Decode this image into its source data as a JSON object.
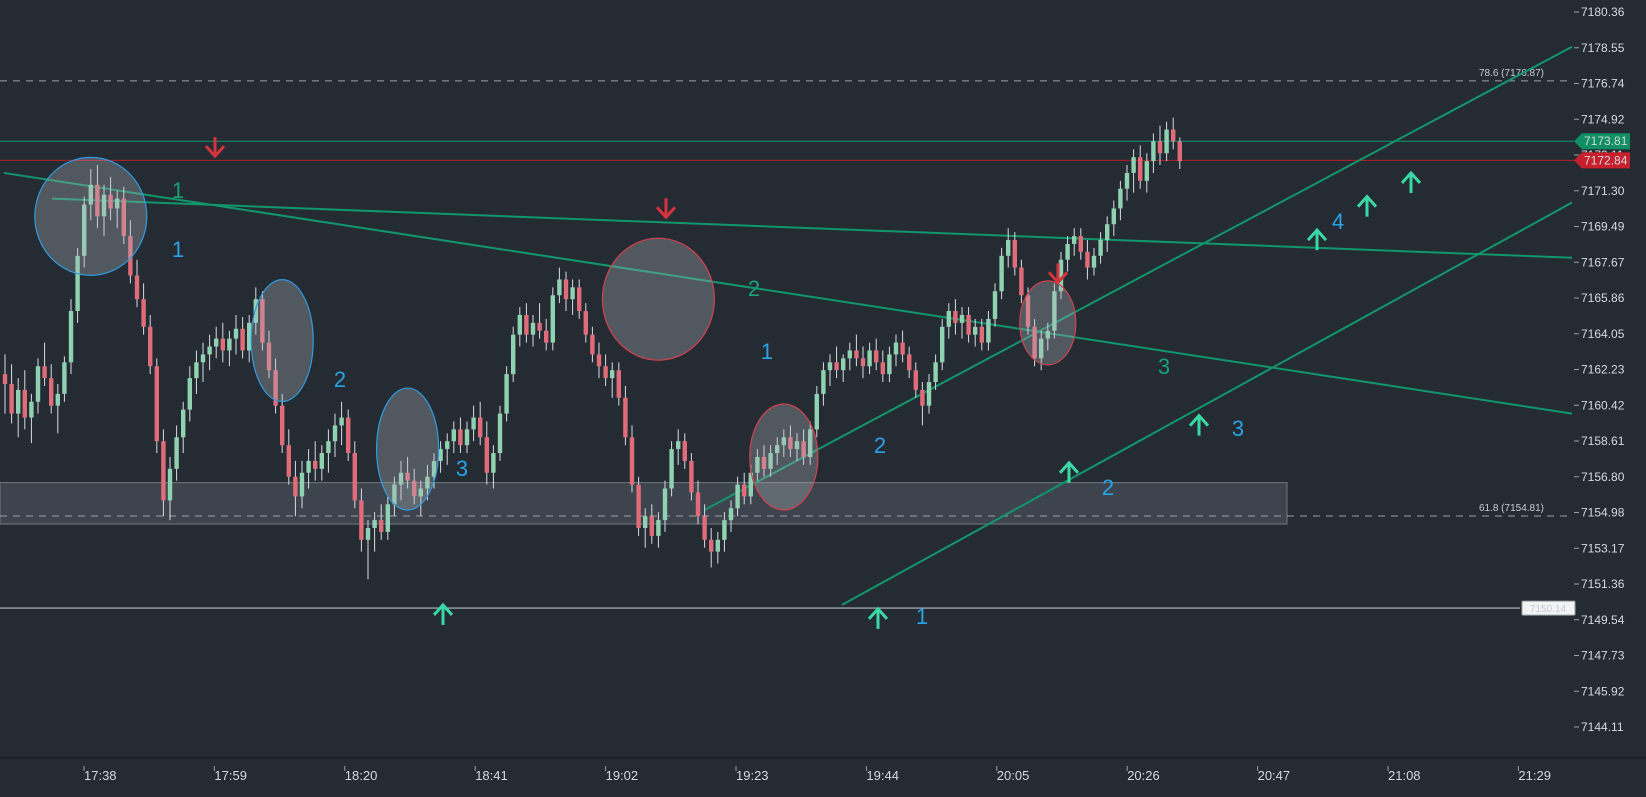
{
  "chart_data": {
    "type": "candlestick",
    "y_axis": {
      "range": [
        7144.11,
        7180.36
      ],
      "tick_labels": [
        "7180.36",
        "7178.55",
        "7176.74",
        "7174.92",
        "7173.11",
        "7171.30",
        "7169.49",
        "7167.67",
        "7165.86",
        "7164.05",
        "7162.23",
        "7160.42",
        "7158.61",
        "7156.80",
        "7154.98",
        "7153.17",
        "7151.36",
        "7149.54",
        "7147.73",
        "7145.92",
        "7144.11"
      ]
    },
    "x_axis": {
      "tick_labels": [
        "17:38",
        "17:59",
        "18:20",
        "18:41",
        "19:02",
        "19:23",
        "19:44",
        "20:05",
        "20:26",
        "20:47",
        "21:08",
        "21:29"
      ]
    },
    "colors": {
      "background": "#252b33",
      "bull": "#8fd1b0",
      "bear": "#e06c7a",
      "trendline": "#12966b",
      "sell_signal": "#d5343f",
      "buy_signal": "#3ad8a4",
      "wave_blue": "#29a3e6",
      "wave_green": "#17a276",
      "support_line": "#9aa0a6",
      "fib_line": "#9aa0a6"
    },
    "fib_levels": [
      {
        "label": "78.6 (7176.87)",
        "price": 7176.87
      },
      {
        "label": "61.8 (7154.81)",
        "price": 7154.81
      }
    ],
    "price_tags": [
      {
        "text": "7173.81",
        "price": 7173.81,
        "color": "#0f8f63",
        "line": "#12966b"
      },
      {
        "text": "7172.84",
        "price": 7172.84,
        "color": "#c71f2d",
        "line": "#b41f2a"
      }
    ],
    "support": {
      "text": "7150.14",
      "price": 7150.14
    },
    "demand_zone": {
      "top": 7156.5,
      "bottom": 7154.4
    },
    "wave_labels": [
      {
        "text": "1",
        "color": "blue"
      },
      {
        "text": "1",
        "color": "green"
      },
      {
        "text": "2",
        "color": "blue"
      },
      {
        "text": "3",
        "color": "blue"
      },
      {
        "text": "2",
        "color": "green"
      },
      {
        "text": "1",
        "color": "blue"
      },
      {
        "text": "2",
        "color": "blue"
      },
      {
        "text": "1",
        "color": "blue"
      },
      {
        "text": "2",
        "color": "blue"
      },
      {
        "text": "3",
        "color": "green"
      },
      {
        "text": "3",
        "color": "blue"
      },
      {
        "text": "4",
        "color": "blue"
      }
    ],
    "signals": [
      {
        "type": "sell",
        "price": 7172.9
      },
      {
        "type": "sell",
        "price": 7169.8
      },
      {
        "type": "sell",
        "price": 7166.5
      },
      {
        "type": "buy",
        "price": 7150.4
      },
      {
        "type": "buy",
        "price": 7150.2
      },
      {
        "type": "buy",
        "price": 7157.6
      },
      {
        "type": "buy",
        "price": 7160.0
      },
      {
        "type": "buy",
        "price": 7169.4
      },
      {
        "type": "buy",
        "price": 7171.1
      },
      {
        "type": "buy",
        "price": 7172.3
      }
    ],
    "candles": [
      [
        7162.0,
        7163.0,
        7160.0,
        7161.5
      ],
      [
        7161.5,
        7162.5,
        7159.5,
        7160.0
      ],
      [
        7160.0,
        7161.8,
        7158.8,
        7161.2
      ],
      [
        7161.2,
        7162.2,
        7159.2,
        7159.8
      ],
      [
        7159.8,
        7161.0,
        7158.5,
        7160.6
      ],
      [
        7160.6,
        7162.8,
        7160.0,
        7162.4
      ],
      [
        7162.4,
        7163.6,
        7161.4,
        7161.8
      ],
      [
        7161.8,
        7162.5,
        7160.0,
        7160.4
      ],
      [
        7160.4,
        7161.5,
        7159.0,
        7161.0
      ],
      [
        7161.0,
        7162.9,
        7160.6,
        7162.6
      ],
      [
        7162.6,
        7165.8,
        7162.0,
        7165.2
      ],
      [
        7165.2,
        7168.4,
        7164.6,
        7168.0
      ],
      [
        7168.0,
        7171.0,
        7167.4,
        7170.6
      ],
      [
        7170.6,
        7172.4,
        7169.8,
        7171.6
      ],
      [
        7171.6,
        7172.6,
        7169.4,
        7170.0
      ],
      [
        7170.0,
        7171.6,
        7169.0,
        7171.1
      ],
      [
        7171.1,
        7172.0,
        7169.8,
        7170.4
      ],
      [
        7170.4,
        7171.3,
        7169.4,
        7170.9
      ],
      [
        7170.9,
        7171.5,
        7168.6,
        7169.0
      ],
      [
        7169.0,
        7169.8,
        7166.6,
        7167.0
      ],
      [
        7167.0,
        7167.8,
        7165.4,
        7165.8
      ],
      [
        7165.8,
        7166.6,
        7164.0,
        7164.4
      ],
      [
        7164.4,
        7165.0,
        7162.0,
        7162.4
      ],
      [
        7162.4,
        7162.8,
        7158.0,
        7158.6
      ],
      [
        7158.6,
        7159.2,
        7154.8,
        7155.6
      ],
      [
        7155.6,
        7157.8,
        7154.6,
        7157.2
      ],
      [
        7157.2,
        7159.4,
        7156.6,
        7158.8
      ],
      [
        7158.8,
        7160.6,
        7158.0,
        7160.2
      ],
      [
        7160.2,
        7162.4,
        7159.6,
        7161.8
      ],
      [
        7161.8,
        7163.2,
        7161.0,
        7162.6
      ],
      [
        7162.6,
        7163.6,
        7161.6,
        7163.0
      ],
      [
        7163.0,
        7164.0,
        7162.2,
        7163.4
      ],
      [
        7163.4,
        7164.4,
        7162.8,
        7163.8
      ],
      [
        7163.8,
        7164.6,
        7162.6,
        7163.2
      ],
      [
        7163.2,
        7164.2,
        7162.4,
        7163.8
      ],
      [
        7163.8,
        7165.0,
        7163.0,
        7164.3
      ],
      [
        7164.3,
        7164.9,
        7162.8,
        7163.2
      ],
      [
        7163.2,
        7165.0,
        7162.6,
        7164.6
      ],
      [
        7164.6,
        7166.4,
        7164.0,
        7165.8
      ],
      [
        7165.8,
        7166.2,
        7163.2,
        7163.6
      ],
      [
        7163.6,
        7164.2,
        7161.8,
        7162.2
      ],
      [
        7162.2,
        7162.8,
        7160.0,
        7160.4
      ],
      [
        7160.4,
        7161.0,
        7158.0,
        7158.4
      ],
      [
        7158.4,
        7159.2,
        7156.4,
        7156.8
      ],
      [
        7156.8,
        7157.6,
        7154.8,
        7155.8
      ],
      [
        7155.8,
        7157.6,
        7155.2,
        7157.0
      ],
      [
        7157.0,
        7158.2,
        7156.2,
        7157.6
      ],
      [
        7157.6,
        7158.6,
        7156.6,
        7157.2
      ],
      [
        7157.2,
        7158.4,
        7156.6,
        7158.0
      ],
      [
        7158.0,
        7159.2,
        7157.0,
        7158.6
      ],
      [
        7158.6,
        7160.0,
        7157.8,
        7159.4
      ],
      [
        7159.4,
        7160.6,
        7158.4,
        7159.8
      ],
      [
        7159.8,
        7160.2,
        7157.6,
        7158.0
      ],
      [
        7158.0,
        7158.6,
        7155.2,
        7155.6
      ],
      [
        7155.6,
        7156.2,
        7153.0,
        7153.6
      ],
      [
        7153.6,
        7154.6,
        7151.6,
        7154.2
      ],
      [
        7154.2,
        7155.0,
        7153.0,
        7154.6
      ],
      [
        7154.6,
        7155.4,
        7153.6,
        7154.0
      ],
      [
        7154.0,
        7155.8,
        7153.6,
        7155.4
      ],
      [
        7155.4,
        7156.8,
        7154.8,
        7156.4
      ],
      [
        7156.4,
        7157.6,
        7155.6,
        7157.0
      ],
      [
        7157.0,
        7157.8,
        7156.2,
        7156.6
      ],
      [
        7156.6,
        7157.2,
        7155.4,
        7155.8
      ],
      [
        7155.8,
        7156.6,
        7154.8,
        7156.2
      ],
      [
        7156.2,
        7157.4,
        7155.6,
        7156.8
      ],
      [
        7156.8,
        7158.0,
        7156.2,
        7157.6
      ],
      [
        7157.6,
        7158.6,
        7157.0,
        7158.2
      ],
      [
        7158.2,
        7159.0,
        7157.4,
        7158.6
      ],
      [
        7158.6,
        7159.6,
        7158.0,
        7159.2
      ],
      [
        7159.2,
        7159.8,
        7158.0,
        7158.4
      ],
      [
        7158.4,
        7159.6,
        7158.0,
        7159.2
      ],
      [
        7159.2,
        7160.4,
        7158.6,
        7159.8
      ],
      [
        7159.8,
        7160.6,
        7158.4,
        7158.8
      ],
      [
        7158.8,
        7159.6,
        7156.4,
        7157.0
      ],
      [
        7157.0,
        7158.4,
        7156.2,
        7158.0
      ],
      [
        7158.0,
        7160.4,
        7157.6,
        7160.0
      ],
      [
        7160.0,
        7162.4,
        7159.6,
        7162.0
      ],
      [
        7162.0,
        7164.4,
        7161.6,
        7164.0
      ],
      [
        7164.0,
        7165.4,
        7163.4,
        7165.0
      ],
      [
        7165.0,
        7165.6,
        7163.6,
        7164.0
      ],
      [
        7164.0,
        7165.0,
        7163.4,
        7164.6
      ],
      [
        7164.6,
        7165.6,
        7163.8,
        7164.2
      ],
      [
        7164.2,
        7164.8,
        7163.2,
        7163.6
      ],
      [
        7163.6,
        7166.4,
        7163.2,
        7166.0
      ],
      [
        7166.0,
        7167.4,
        7165.6,
        7166.8
      ],
      [
        7166.8,
        7167.2,
        7165.2,
        7165.8
      ],
      [
        7165.8,
        7166.8,
        7165.0,
        7166.4
      ],
      [
        7166.4,
        7166.8,
        7164.8,
        7165.2
      ],
      [
        7165.2,
        7165.6,
        7163.6,
        7164.0
      ],
      [
        7164.0,
        7164.4,
        7162.6,
        7163.0
      ],
      [
        7163.0,
        7163.6,
        7161.8,
        7162.4
      ],
      [
        7162.4,
        7163.0,
        7161.4,
        7161.8
      ],
      [
        7161.8,
        7162.6,
        7160.8,
        7162.2
      ],
      [
        7162.2,
        7162.6,
        7160.4,
        7160.8
      ],
      [
        7160.8,
        7161.4,
        7158.4,
        7158.8
      ],
      [
        7158.8,
        7159.4,
        7156.0,
        7156.4
      ],
      [
        7156.4,
        7156.8,
        7153.8,
        7154.2
      ],
      [
        7154.2,
        7155.2,
        7153.2,
        7154.8
      ],
      [
        7154.8,
        7155.4,
        7153.4,
        7153.8
      ],
      [
        7153.8,
        7155.0,
        7153.2,
        7154.6
      ],
      [
        7154.6,
        7156.6,
        7154.0,
        7156.2
      ],
      [
        7156.2,
        7158.6,
        7155.8,
        7158.2
      ],
      [
        7158.2,
        7159.2,
        7157.4,
        7158.6
      ],
      [
        7158.6,
        7159.0,
        7157.2,
        7157.6
      ],
      [
        7157.6,
        7158.0,
        7155.6,
        7156.0
      ],
      [
        7156.0,
        7156.6,
        7154.4,
        7154.8
      ],
      [
        7154.8,
        7155.4,
        7153.2,
        7153.6
      ],
      [
        7153.6,
        7154.2,
        7152.2,
        7153.0
      ],
      [
        7153.0,
        7154.0,
        7152.4,
        7153.6
      ],
      [
        7153.6,
        7155.0,
        7153.0,
        7154.6
      ],
      [
        7154.6,
        7155.6,
        7154.0,
        7155.2
      ],
      [
        7155.2,
        7156.8,
        7154.8,
        7156.4
      ],
      [
        7156.4,
        7157.0,
        7155.4,
        7155.8
      ],
      [
        7155.8,
        7157.4,
        7155.4,
        7157.0
      ],
      [
        7157.0,
        7158.2,
        7156.6,
        7157.8
      ],
      [
        7157.8,
        7158.4,
        7156.8,
        7157.2
      ],
      [
        7157.2,
        7158.4,
        7156.8,
        7158.0
      ],
      [
        7158.0,
        7158.8,
        7157.4,
        7158.4
      ],
      [
        7158.4,
        7159.2,
        7157.8,
        7158.8
      ],
      [
        7158.8,
        7159.4,
        7157.8,
        7158.2
      ],
      [
        7158.2,
        7159.0,
        7157.6,
        7158.6
      ],
      [
        7158.6,
        7159.2,
        7157.4,
        7157.8
      ],
      [
        7157.8,
        7159.6,
        7157.4,
        7159.2
      ],
      [
        7159.2,
        7161.4,
        7158.8,
        7161.0
      ],
      [
        7161.0,
        7162.6,
        7160.4,
        7162.2
      ],
      [
        7162.2,
        7163.0,
        7161.4,
        7162.6
      ],
      [
        7162.6,
        7163.4,
        7161.8,
        7162.2
      ],
      [
        7162.2,
        7163.0,
        7161.6,
        7162.8
      ],
      [
        7162.8,
        7163.6,
        7162.2,
        7163.2
      ],
      [
        7163.2,
        7164.0,
        7162.4,
        7162.8
      ],
      [
        7162.8,
        7163.4,
        7161.8,
        7162.4
      ],
      [
        7162.4,
        7163.6,
        7162.0,
        7163.2
      ],
      [
        7163.2,
        7163.8,
        7162.2,
        7162.6
      ],
      [
        7162.6,
        7163.2,
        7161.6,
        7162.0
      ],
      [
        7162.0,
        7163.4,
        7161.6,
        7163.0
      ],
      [
        7163.0,
        7164.0,
        7162.4,
        7163.6
      ],
      [
        7163.6,
        7164.2,
        7162.6,
        7163.0
      ],
      [
        7163.0,
        7163.4,
        7161.8,
        7162.2
      ],
      [
        7162.2,
        7162.6,
        7160.8,
        7161.2
      ],
      [
        7161.2,
        7161.6,
        7159.4,
        7160.4
      ],
      [
        7160.4,
        7162.0,
        7160.0,
        7161.6
      ],
      [
        7161.6,
        7163.0,
        7161.2,
        7162.6
      ],
      [
        7162.6,
        7164.8,
        7162.2,
        7164.4
      ],
      [
        7164.4,
        7165.6,
        7163.8,
        7165.2
      ],
      [
        7165.2,
        7165.8,
        7164.0,
        7164.6
      ],
      [
        7164.6,
        7165.4,
        7163.8,
        7165.0
      ],
      [
        7165.0,
        7165.4,
        7163.6,
        7164.0
      ],
      [
        7164.0,
        7164.8,
        7163.4,
        7164.4
      ],
      [
        7164.4,
        7164.8,
        7163.2,
        7163.6
      ],
      [
        7163.6,
        7165.2,
        7163.2,
        7164.8
      ],
      [
        7164.8,
        7166.6,
        7164.4,
        7166.2
      ],
      [
        7166.2,
        7168.4,
        7165.8,
        7168.0
      ],
      [
        7168.0,
        7169.4,
        7167.4,
        7168.8
      ],
      [
        7168.8,
        7169.2,
        7167.0,
        7167.4
      ],
      [
        7167.4,
        7167.8,
        7165.6,
        7166.0
      ],
      [
        7166.0,
        7166.4,
        7164.0,
        7164.4
      ],
      [
        7164.4,
        7164.8,
        7162.4,
        7162.8
      ],
      [
        7162.8,
        7164.2,
        7162.2,
        7163.8
      ],
      [
        7163.8,
        7164.6,
        7163.2,
        7164.2
      ],
      [
        7164.2,
        7166.6,
        7163.8,
        7166.2
      ],
      [
        7166.2,
        7168.2,
        7165.8,
        7167.8
      ],
      [
        7167.8,
        7169.0,
        7167.2,
        7168.6
      ],
      [
        7168.6,
        7169.4,
        7168.0,
        7169.0
      ],
      [
        7169.0,
        7169.4,
        7167.8,
        7168.2
      ],
      [
        7168.2,
        7168.8,
        7166.8,
        7167.4
      ],
      [
        7167.4,
        7168.4,
        7167.0,
        7168.0
      ],
      [
        7168.0,
        7169.2,
        7167.6,
        7168.8
      ],
      [
        7168.8,
        7170.0,
        7168.2,
        7169.6
      ],
      [
        7169.6,
        7170.8,
        7169.0,
        7170.4
      ],
      [
        7170.4,
        7171.8,
        7169.8,
        7171.4
      ],
      [
        7171.4,
        7172.6,
        7170.8,
        7172.2
      ],
      [
        7172.2,
        7173.4,
        7171.2,
        7173.0
      ],
      [
        7173.0,
        7173.6,
        7171.4,
        7171.8
      ],
      [
        7171.8,
        7173.2,
        7171.2,
        7172.8
      ],
      [
        7172.8,
        7174.2,
        7172.2,
        7173.8
      ],
      [
        7173.8,
        7174.6,
        7172.6,
        7173.2
      ],
      [
        7173.2,
        7174.8,
        7172.8,
        7174.4
      ],
      [
        7174.4,
        7175.0,
        7173.4,
        7173.8
      ],
      [
        7173.8,
        7174.0,
        7172.4,
        7172.8
      ]
    ]
  }
}
